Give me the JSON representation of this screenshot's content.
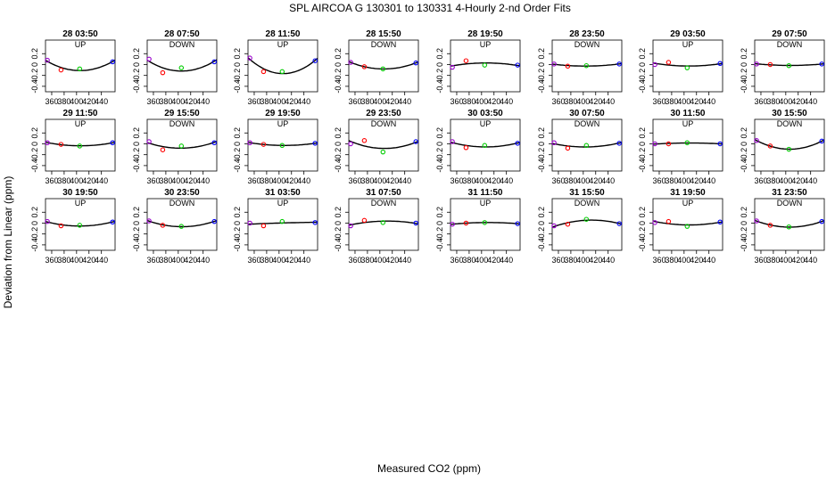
{
  "title": "SPL   AIRCOA G   130301 to 130331   4-Hourly 2-nd Order Fits",
  "xlabel": "Measured CO2 (ppm)",
  "ylabel": "Deviation from Linear (ppm)",
  "colors": {
    "point1": "#9900cc",
    "point2": "#ff0000",
    "point3": "#00cc00",
    "point4": "#0000ff",
    "curve": "#000000"
  },
  "chart_data": {
    "type": "scatter",
    "title": "SPL   AIRCOA G   130301 to 130331   4-Hourly 2-nd Order Fits",
    "xlabel": "Measured CO2 (ppm)",
    "ylabel": "Deviation from Linear (ppm)",
    "xlim": [
      350,
      462
    ],
    "ylim": [
      -0.5,
      0.45
    ],
    "xticks": [
      360,
      400,
      440
    ],
    "yticks": [
      0.2,
      0,
      -0.2,
      -0.4
    ],
    "xtick_labels": [
      "360",
      "400",
      "440"
    ],
    "xtick_labels_minor": [
      "380",
      "420"
    ],
    "ytick_labels": [
      "0.2",
      "0",
      "-0.2",
      "-0.4"
    ],
    "standards_x": [
      353,
      375,
      405,
      458
    ],
    "panels": [
      {
        "label": "28 03:50",
        "dir": "UP",
        "y": [
          0.08,
          -0.1,
          -0.08,
          0.05
        ]
      },
      {
        "label": "28 07:50",
        "dir": "DOWN",
        "y": [
          0.1,
          -0.15,
          -0.06,
          0.05
        ]
      },
      {
        "label": "28 11:50",
        "dir": "UP",
        "y": [
          0.12,
          -0.13,
          -0.13,
          0.07
        ]
      },
      {
        "label": "28 15:50",
        "dir": "DOWN",
        "y": [
          0.04,
          -0.04,
          -0.08,
          0.03
        ]
      },
      {
        "label": "28 19:50",
        "dir": "UP",
        "y": [
          -0.05,
          0.07,
          -0.01,
          -0.01
        ]
      },
      {
        "label": "28 23:50",
        "dir": "DOWN",
        "y": [
          0.01,
          -0.03,
          -0.02,
          0.01
        ]
      },
      {
        "label": "29 03:50",
        "dir": "UP",
        "y": [
          0.0,
          0.04,
          -0.06,
          0.02
        ]
      },
      {
        "label": "29 07:50",
        "dir": "DOWN",
        "y": [
          0.01,
          0.0,
          -0.02,
          0.01
        ]
      },
      {
        "label": "29 11:50",
        "dir": "UP",
        "y": [
          0.02,
          -0.01,
          -0.04,
          0.02
        ]
      },
      {
        "label": "29 15:50",
        "dir": "DOWN",
        "y": [
          0.04,
          -0.11,
          -0.04,
          0.02
        ]
      },
      {
        "label": "29 19:50",
        "dir": "UP",
        "y": [
          0.02,
          -0.01,
          -0.03,
          0.01
        ]
      },
      {
        "label": "29 23:50",
        "dir": "DOWN",
        "y": [
          0.0,
          0.06,
          -0.15,
          0.04
        ]
      },
      {
        "label": "30 03:50",
        "dir": "UP",
        "y": [
          0.04,
          -0.07,
          -0.03,
          0.01
        ]
      },
      {
        "label": "30 07:50",
        "dir": "DOWN",
        "y": [
          0.02,
          -0.08,
          -0.03,
          0.01
        ]
      },
      {
        "label": "30 11:50",
        "dir": "UP",
        "y": [
          0.0,
          0.0,
          0.02,
          0.0
        ]
      },
      {
        "label": "30 15:50",
        "dir": "DOWN",
        "y": [
          0.06,
          -0.04,
          -0.1,
          0.05
        ]
      },
      {
        "label": "30 19:50",
        "dir": "UP",
        "y": [
          0.03,
          -0.05,
          -0.04,
          0.02
        ]
      },
      {
        "label": "30 23:50",
        "dir": "DOWN",
        "y": [
          0.04,
          -0.04,
          -0.06,
          0.03
        ]
      },
      {
        "label": "31 03:50",
        "dir": "UP",
        "y": [
          0.0,
          -0.05,
          0.03,
          0.01
        ]
      },
      {
        "label": "31 07:50",
        "dir": "DOWN",
        "y": [
          -0.05,
          0.05,
          0.01,
          0.0
        ]
      },
      {
        "label": "31 11:50",
        "dir": "UP",
        "y": [
          -0.02,
          0.0,
          0.01,
          -0.01
        ]
      },
      {
        "label": "31 15:50",
        "dir": "DOWN",
        "y": [
          -0.05,
          -0.02,
          0.07,
          -0.01
        ]
      },
      {
        "label": "31 19:50",
        "dir": "UP",
        "y": [
          0.01,
          0.03,
          -0.06,
          0.02
        ]
      },
      {
        "label": "31 23:50",
        "dir": "DOWN",
        "y": [
          0.04,
          -0.04,
          -0.07,
          0.03
        ]
      }
    ]
  }
}
